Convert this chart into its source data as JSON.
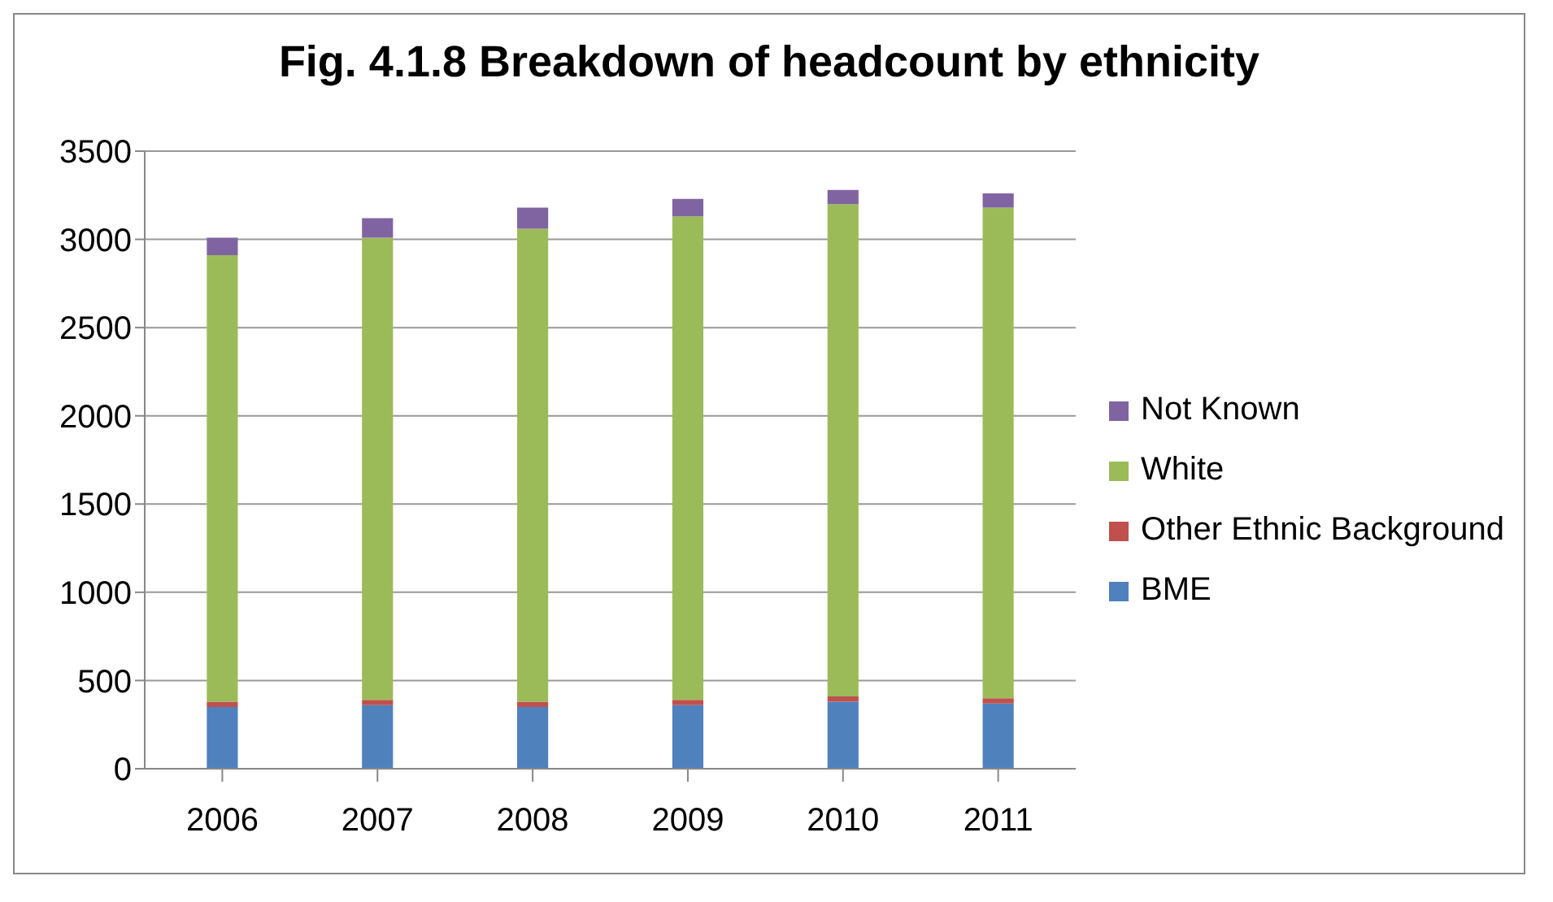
{
  "chart_data": {
    "type": "bar",
    "title": "Fig. 4.1.8 Breakdown of headcount by ethnicity",
    "categories": [
      "2006",
      "2007",
      "2008",
      "2009",
      "2010",
      "2011"
    ],
    "stacked": true,
    "series": [
      {
        "name": "BME",
        "color": "#4f81bd",
        "values": [
          350,
          360,
          350,
          360,
          380,
          370
        ]
      },
      {
        "name": "Other Ethnic Background",
        "color": "#c0504d",
        "values": [
          30,
          30,
          30,
          30,
          30,
          30
        ]
      },
      {
        "name": "White",
        "color": "#9bbb59",
        "values": [
          2530,
          2620,
          2680,
          2740,
          2790,
          2780
        ]
      },
      {
        "name": "Not Known",
        "color": "#8064a2",
        "values": [
          100,
          110,
          120,
          100,
          80,
          80
        ]
      }
    ],
    "ylim": [
      0,
      3500
    ],
    "yticks": [
      0,
      500,
      1000,
      1500,
      2000,
      2500,
      3000,
      3500
    ],
    "grid": "y",
    "legend": "right"
  }
}
